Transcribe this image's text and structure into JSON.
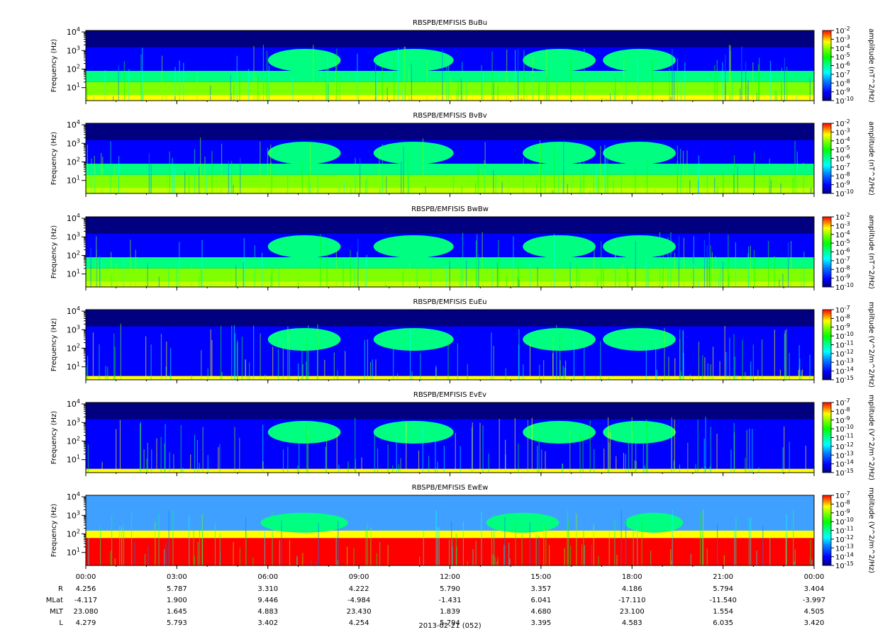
{
  "chart_data": {
    "type": "heatmap",
    "date_label": "2013-02-21 (052)",
    "ylabel": "Frequency (Hz)",
    "ylim": [
      2,
      12000
    ],
    "y_scale": "log",
    "y_ticks": [
      {
        "value": 10,
        "base": "10",
        "exp": "1"
      },
      {
        "value": 100,
        "base": "10",
        "exp": "2"
      },
      {
        "value": 1000,
        "base": "10",
        "exp": "3"
      },
      {
        "value": 10000,
        "base": "10",
        "exp": "4"
      }
    ],
    "x_ticks": [
      "00:00",
      "03:00",
      "06:00",
      "09:00",
      "12:00",
      "15:00",
      "18:00",
      "21:00",
      "00:00"
    ],
    "colorscale": [
      "#000080",
      "#0000ff",
      "#0080ff",
      "#00ffff",
      "#00ff80",
      "#00ff00",
      "#80ff00",
      "#ffff00",
      "#ff8000",
      "#ff0000"
    ],
    "panels": [
      {
        "title": "RBSPB/EMFISIS  BuBu",
        "colorbar_label": "amplitude (nT^2/Hz)",
        "colorbar_ticks": [
          "-2",
          "-3",
          "-4",
          "-5",
          "-6",
          "-7",
          "-8",
          "-9",
          "-10"
        ],
        "kind": "B",
        "bg_level": 1
      },
      {
        "title": "RBSPB/EMFISIS  BvBv",
        "colorbar_label": "amplitude (nT^2/Hz)",
        "colorbar_ticks": [
          "-2",
          "-3",
          "-4",
          "-5",
          "-6",
          "-7",
          "-8",
          "-9",
          "-10"
        ],
        "kind": "B",
        "bg_level": 1
      },
      {
        "title": "RBSPB/EMFISIS  BwBw",
        "colorbar_label": "amplitude (nT^2/Hz)",
        "colorbar_ticks": [
          "-2",
          "-3",
          "-4",
          "-5",
          "-6",
          "-7",
          "-8",
          "-9",
          "-10"
        ],
        "kind": "B",
        "bg_level": 1
      },
      {
        "title": "RBSPB/EMFISIS  EuEu",
        "colorbar_label": "mplitude (V^2/m^2/Hz)",
        "colorbar_ticks": [
          "-7",
          "-8",
          "-9",
          "-10",
          "-11",
          "-12",
          "-13",
          "-14",
          "-15"
        ],
        "kind": "E",
        "bg_level": 1
      },
      {
        "title": "RBSPB/EMFISIS  EvEv",
        "colorbar_label": "mplitude (V^2/m^2/Hz)",
        "colorbar_ticks": [
          "-7",
          "-8",
          "-9",
          "-10",
          "-11",
          "-12",
          "-13",
          "-14",
          "-15"
        ],
        "kind": "E",
        "bg_level": 1
      },
      {
        "title": "RBSPB/EMFISIS  EwEw",
        "colorbar_label": "mplitude (V^2/m^2/Hz)",
        "colorbar_ticks": [
          "-7",
          "-8",
          "-9",
          "-10",
          "-11",
          "-12",
          "-13",
          "-14",
          "-15"
        ],
        "kind": "Ew",
        "bg_level": 3
      }
    ],
    "ephemeris": {
      "labels": [
        "R",
        "MLat",
        "MLT",
        "L"
      ],
      "rows": [
        [
          "4.256",
          "5.787",
          "3.310",
          "4.222",
          "5.790",
          "3.357",
          "4.186",
          "5.794",
          "3.404"
        ],
        [
          "-4.117",
          "1.900",
          "9.446",
          "-4.984",
          "-1.431",
          "6.041",
          "-17.110",
          "-11.540",
          "-3.997"
        ],
        [
          "23.080",
          "1.645",
          "4.883",
          "23.430",
          "1.839",
          "4.680",
          "23.100",
          "1.554",
          "4.505"
        ],
        [
          "4.279",
          "5.793",
          "3.402",
          "4.254",
          "5.794",
          "3.395",
          "4.583",
          "6.035",
          "3.420"
        ]
      ]
    }
  }
}
